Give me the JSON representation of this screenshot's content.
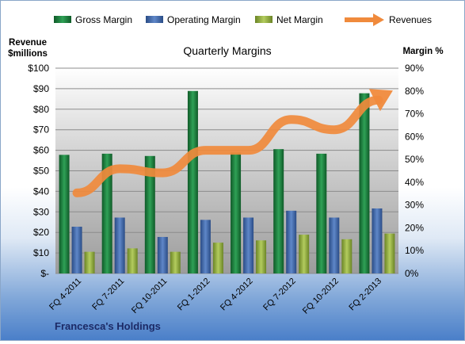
{
  "chart_data": {
    "type": "bar",
    "title": "Quarterly Margins",
    "footer": "Francesca's Holdings",
    "y_left_label_line1": "Revenue",
    "y_left_label_line2": "$millions",
    "y_right_label": "Margin %",
    "categories": [
      "FQ 4-2011",
      "FQ 7-2011",
      "FQ 10-2011",
      "FQ 1-2012",
      "FQ 4-2012",
      "FQ 7-2012",
      "FQ 10-2012",
      "FQ 2-2013"
    ],
    "y_left_ticks": [
      "$-",
      "$10",
      "$20",
      "$30",
      "$40",
      "$50",
      "$60",
      "$70",
      "$80",
      "$90",
      "$100"
    ],
    "y_right_ticks": [
      "0%",
      "10%",
      "20%",
      "30%",
      "40%",
      "50%",
      "60%",
      "70%",
      "80%",
      "90%"
    ],
    "ylim_left": [
      0,
      100
    ],
    "ylim_right": [
      0,
      90
    ],
    "legend_position": "top",
    "series": [
      {
        "name": "Gross Margin",
        "axis": "right",
        "kind": "bar",
        "color": "#1e7a3c",
        "values": [
          52,
          52.5,
          51.5,
          80,
          53,
          54.5,
          52.5,
          79
        ]
      },
      {
        "name": "Operating Margin",
        "axis": "right",
        "kind": "bar",
        "color": "#3f67a8",
        "values": [
          20.5,
          24.5,
          16,
          23.5,
          24.5,
          27.5,
          24.5,
          28.5
        ]
      },
      {
        "name": "Net Margin",
        "axis": "right",
        "kind": "bar",
        "color": "#8aa53c",
        "values": [
          9.5,
          11,
          9.5,
          13.5,
          14.5,
          17,
          15,
          17.5
        ]
      },
      {
        "name": "Revenues",
        "axis": "left",
        "kind": "line",
        "color": "#f08a3c",
        "values": [
          40,
          51,
          49,
          60,
          60,
          75,
          70,
          86
        ]
      }
    ]
  }
}
